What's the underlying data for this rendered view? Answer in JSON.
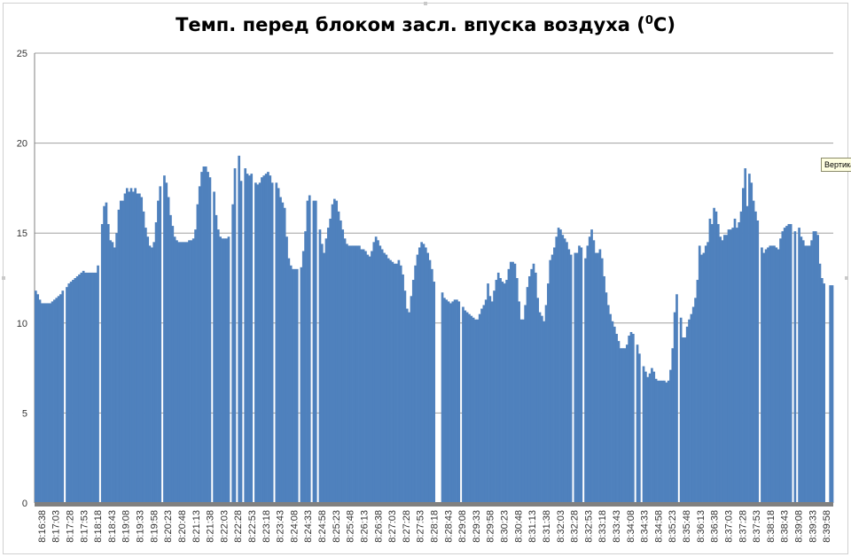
{
  "tooltip": {
    "text": "Вертика"
  },
  "colors": {
    "bar": "#4f81bd",
    "grid": "#a0a0a0",
    "axis": "#808080"
  },
  "chart_data": {
    "type": "bar",
    "title": "Темп. перед блоком засл. впуска воздуха (",
    "title_sup": "0",
    "title_end": "C)",
    "xlabel": "",
    "ylabel": "",
    "ylim": [
      0,
      25
    ],
    "yticks": [
      0,
      5,
      10,
      15,
      20,
      25
    ],
    "grid": true,
    "legend": "none",
    "tick_labels": [
      "8:16:38",
      "8:17:03",
      "8:17:28",
      "8:17:53",
      "8:18:18",
      "8:18:43",
      "8:19:08",
      "8:19:33",
      "8:19:58",
      "8:20:23",
      "8:20:48",
      "8:21:13",
      "8:21:38",
      "8:22:03",
      "8:22:28",
      "8:22:53",
      "8:23:18",
      "8:23:43",
      "8:24:08",
      "8:24:33",
      "8:24:58",
      "8:25:23",
      "8:25:48",
      "8:26:13",
      "8:26:38",
      "8:27:03",
      "8:27:28",
      "8:27:53",
      "8:28:18",
      "8:28:43",
      "8:29:08",
      "8:29:33",
      "8:29:58",
      "8:30:23",
      "8:30:48",
      "8:31:13",
      "8:31:38",
      "8:32:03",
      "8:32:28",
      "8:32:53",
      "8:33:18",
      "8:33:43",
      "8:34:08",
      "8:34:33",
      "8:34:58",
      "8:35:23",
      "8:35:48",
      "8:36:13",
      "8:36:38",
      "8:37:03",
      "8:37:28",
      "8:37:53",
      "8:38:18",
      "8:38:43",
      "8:39:08",
      "8:39:33",
      "8:39:58"
    ],
    "values": [
      11.8,
      11.6,
      11.3,
      11.1,
      11.1,
      11.1,
      11.1,
      11.1,
      11.2,
      11.3,
      11.4,
      11.5,
      11.6,
      11.8,
      0,
      12.0,
      12.2,
      12.3,
      12.4,
      12.5,
      12.6,
      12.7,
      12.8,
      12.9,
      12.8,
      12.8,
      12.8,
      12.8,
      12.8,
      12.8,
      13.2,
      0,
      15.5,
      16.5,
      16.7,
      15.5,
      14.6,
      14.5,
      14.2,
      15.0,
      16.3,
      16.8,
      16.8,
      17.2,
      17.5,
      17.3,
      17.5,
      17.3,
      17.5,
      17.2,
      17.2,
      17.0,
      16.2,
      15.3,
      14.8,
      14.3,
      14.2,
      14.5,
      15.6,
      16.8,
      17.6,
      0,
      18.2,
      17.8,
      17.0,
      16.0,
      15.4,
      14.8,
      14.6,
      14.5,
      14.5,
      14.5,
      14.5,
      14.5,
      14.6,
      14.6,
      14.7,
      15.2,
      16.6,
      17.6,
      18.4,
      18.7,
      18.7,
      18.4,
      18.1,
      0,
      17.3,
      16.0,
      15.2,
      14.8,
      14.7,
      14.7,
      14.7,
      14.8,
      0,
      16.6,
      18.6,
      0,
      19.3,
      17.9,
      0,
      18.6,
      18.3,
      18.2,
      18.3,
      0,
      17.8,
      17.7,
      17.8,
      18.1,
      18.2,
      18.3,
      18.4,
      18.2,
      17.8,
      0,
      17.8,
      17.5,
      17.0,
      16.7,
      16.4,
      14.8,
      13.6,
      13.2,
      13.0,
      13.0,
      13.0,
      0,
      13.1,
      14.0,
      15.1,
      16.8,
      17.1,
      0,
      16.8,
      16.8,
      0,
      15.2,
      14.4,
      13.9,
      14.7,
      15.3,
      15.8,
      16.6,
      16.9,
      16.8,
      16.2,
      15.7,
      15.2,
      14.7,
      14.4,
      14.3,
      14.3,
      14.3,
      14.3,
      14.3,
      14.3,
      14.1,
      14.1,
      14.0,
      13.8,
      13.7,
      14.0,
      14.5,
      14.8,
      14.6,
      14.3,
      14.1,
      13.9,
      13.8,
      13.6,
      13.5,
      13.4,
      13.3,
      13.3,
      13.5,
      13.2,
      12.7,
      11.8,
      10.8,
      10.6,
      11.5,
      12.4,
      13.2,
      13.8,
      14.2,
      14.5,
      14.4,
      14.2,
      13.9,
      13.5,
      13.0,
      12.3,
      0,
      0,
      0,
      11.7,
      11.4,
      11.3,
      11.2,
      11.1,
      11.2,
      11.3,
      11.3,
      11.2,
      0,
      10.9,
      10.7,
      10.6,
      10.5,
      10.4,
      10.3,
      10.2,
      10.2,
      10.5,
      10.8,
      11.0,
      11.3,
      12.2,
      11.5,
      11.2,
      11.8,
      12.4,
      12.8,
      12.5,
      12.3,
      12.2,
      12.4,
      13.0,
      13.4,
      13.4,
      13.3,
      12.5,
      11.2,
      10.2,
      10.2,
      11.0,
      12.0,
      12.6,
      13.0,
      13.3,
      12.8,
      11.4,
      10.6,
      10.4,
      10.1,
      11.0,
      12.2,
      13.5,
      13.8,
      14.2,
      14.8,
      15.3,
      15.2,
      14.9,
      14.7,
      14.5,
      14.1,
      13.8,
      0,
      13.9,
      13.9,
      14.3,
      14.2,
      0,
      13.6,
      14.3,
      14.8,
      15.2,
      14.6,
      13.9,
      13.9,
      14.1,
      13.6,
      12.6,
      11.7,
      11.0,
      10.5,
      10.1,
      9.8,
      9.4,
      9.0,
      8.6,
      8.6,
      8.6,
      8.8,
      9.3,
      9.5,
      9.4,
      0,
      8.8,
      8.3,
      0,
      7.6,
      7.3,
      7.0,
      7.2,
      7.5,
      7.3,
      6.9,
      6.8,
      6.8,
      6.8,
      6.8,
      6.7,
      6.8,
      7.4,
      8.6,
      10.6,
      11.6,
      0,
      10.3,
      9.2,
      9.2,
      9.8,
      10.2,
      10.5,
      10.9,
      11.4,
      12.4,
      14.3,
      13.8,
      13.9,
      14.3,
      14.5,
      15.8,
      15.5,
      16.4,
      16.2,
      15.5,
      14.8,
      14.6,
      14.9,
      14.9,
      15.2,
      15.2,
      15.3,
      15.8,
      15.3,
      15.6,
      16.2,
      17.5,
      18.6,
      16.5,
      18.3,
      17.8,
      16.8,
      16.2,
      15.7,
      0,
      14.2,
      13.9,
      14.1,
      14.2,
      14.3,
      14.3,
      14.3,
      14.2,
      14.1,
      14.7,
      15.1,
      15.3,
      15.4,
      15.5,
      15.5,
      0,
      15.1,
      0,
      15.3,
      14.8,
      14.6,
      14.3,
      14.3,
      14.3,
      14.6,
      15.1,
      15.1,
      14.9,
      13.3,
      12.5,
      12.2,
      0,
      0,
      12.1,
      12.1
    ]
  }
}
